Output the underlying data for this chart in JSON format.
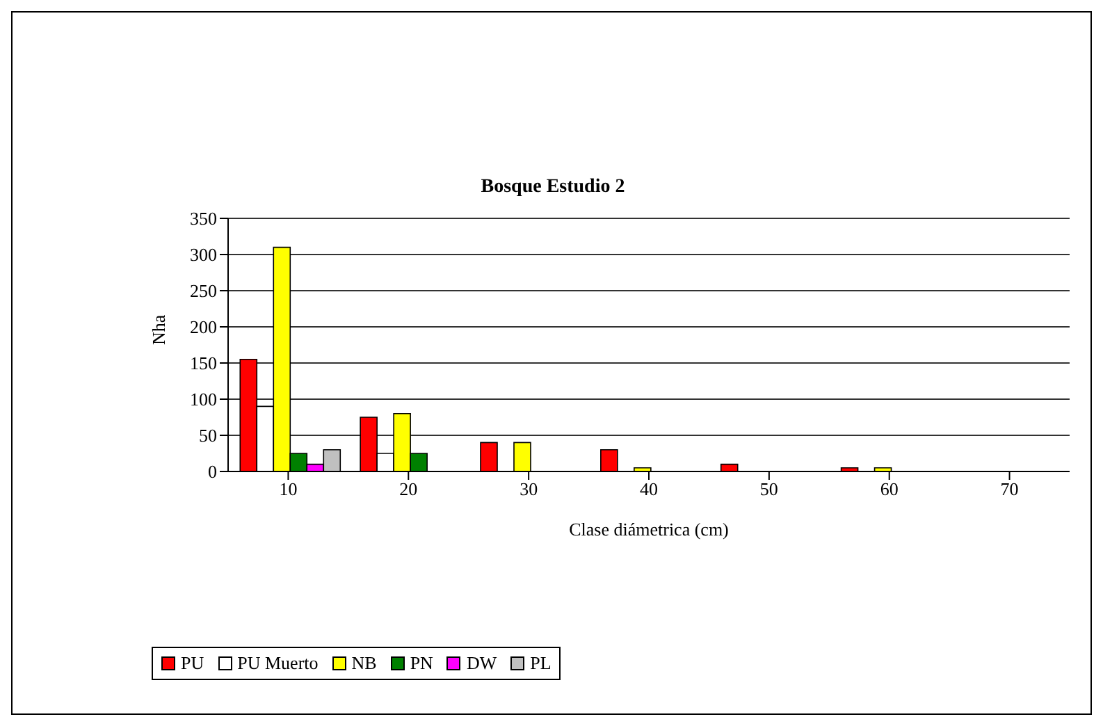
{
  "chart_data": {
    "type": "bar",
    "title": "Bosque Estudio 2",
    "xlabel": "Clase diámetrica (cm)",
    "ylabel": "Nha",
    "categories": [
      "10",
      "20",
      "30",
      "40",
      "50",
      "60",
      "70"
    ],
    "series": [
      {
        "name": "PU",
        "color": "#ff0000",
        "values": [
          155,
          75,
          40,
          30,
          10,
          5,
          0
        ]
      },
      {
        "name": "PU Muerto",
        "color": "#ffffff",
        "values": [
          90,
          25,
          0,
          0,
          0,
          0,
          0
        ]
      },
      {
        "name": "NB",
        "color": "#ffff00",
        "values": [
          310,
          80,
          40,
          5,
          0,
          5,
          0
        ]
      },
      {
        "name": "PN",
        "color": "#008000",
        "values": [
          25,
          25,
          0,
          0,
          0,
          0,
          0
        ]
      },
      {
        "name": "DW",
        "color": "#ff00ff",
        "values": [
          10,
          0,
          0,
          0,
          0,
          0,
          0
        ]
      },
      {
        "name": "PL",
        "color": "#c0c0c0",
        "values": [
          30,
          0,
          0,
          0,
          0,
          0,
          0
        ]
      }
    ],
    "ylim": [
      0,
      350
    ],
    "yticks": [
      0,
      50,
      100,
      150,
      200,
      250,
      300,
      350
    ],
    "grid": "y",
    "legend": "bottom"
  }
}
